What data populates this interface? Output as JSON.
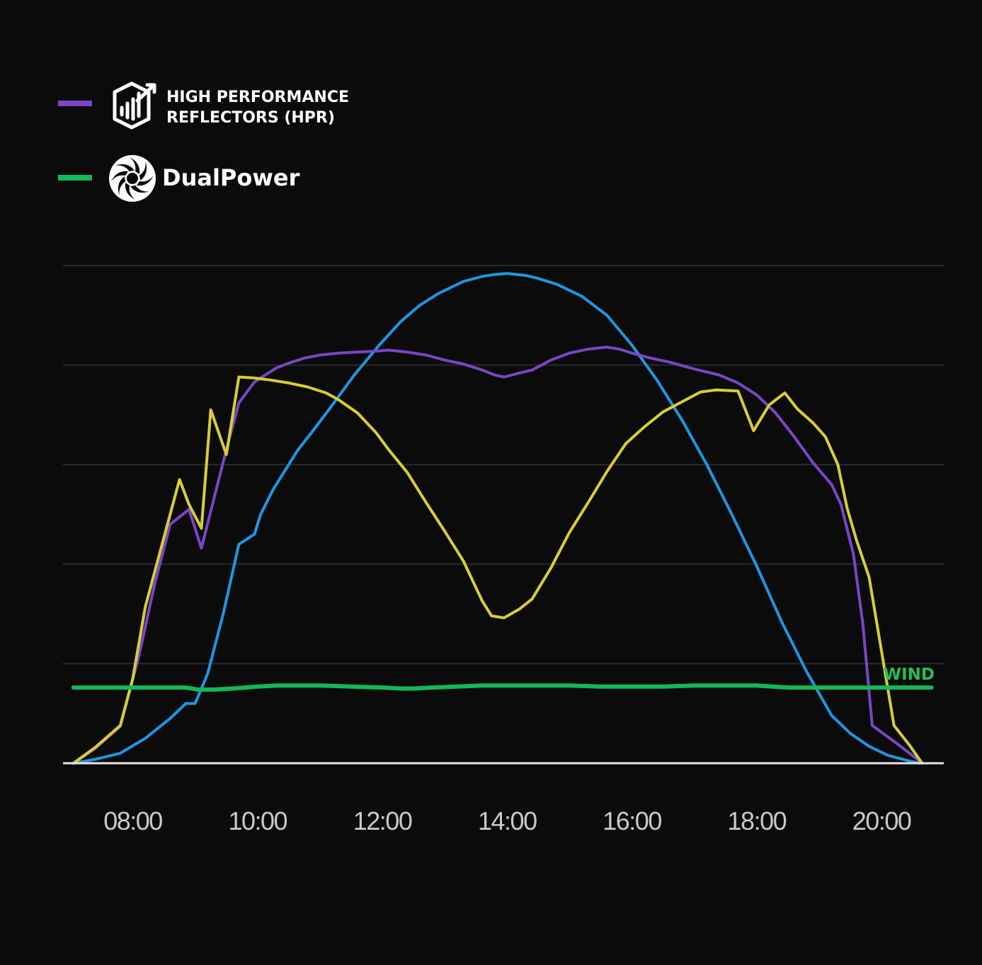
{
  "legend": {
    "hpr": {
      "line1": "HIGH PERFORMANCE",
      "line2": "REFLECTORS (HPR)",
      "color": "#7a45c7",
      "icon": "bar-chart-growth-icon"
    },
    "dualpower": {
      "label": "DualPower",
      "color": "#12b85a",
      "icon": "aperture-turbine-icon"
    }
  },
  "wind_label": "WIND",
  "chart_data": {
    "type": "line",
    "xlabel": "",
    "ylabel": "",
    "xlim": [
      6.95,
      20.85
    ],
    "ylim": [
      0,
      5
    ],
    "x_ticks": [
      8,
      10,
      12,
      14,
      16,
      18,
      20
    ],
    "x_tick_labels": [
      "08:00",
      "10:00",
      "12:00",
      "14:00",
      "16:00",
      "18:00",
      "20:00"
    ],
    "grid": "horizontal",
    "legend_position": "top-left",
    "series": [
      {
        "color": "#1e96e3",
        "x": [
          7.05,
          7.4,
          7.8,
          8.2,
          8.6,
          8.85,
          9.0,
          9.2,
          9.45,
          9.7,
          9.95,
          10.05,
          10.25,
          10.4,
          10.65,
          10.9,
          11.2,
          11.55,
          11.95,
          12.3,
          12.6,
          12.9,
          13.3,
          13.6,
          13.8,
          14.0,
          14.3,
          14.5,
          14.8,
          15.2,
          15.6,
          16.0,
          16.4,
          16.8,
          17.2,
          17.6,
          18.0,
          18.4,
          18.8,
          19.2,
          19.5,
          19.8,
          20.1,
          20.4,
          20.6
        ],
        "y": [
          0.0,
          0.04,
          0.1,
          0.25,
          0.45,
          0.6,
          0.6,
          0.9,
          1.5,
          2.2,
          2.3,
          2.5,
          2.75,
          2.9,
          3.15,
          3.35,
          3.6,
          3.9,
          4.2,
          4.44,
          4.6,
          4.72,
          4.84,
          4.89,
          4.91,
          4.92,
          4.9,
          4.87,
          4.81,
          4.69,
          4.5,
          4.2,
          3.85,
          3.45,
          3.0,
          2.5,
          1.98,
          1.42,
          0.92,
          0.48,
          0.3,
          0.17,
          0.08,
          0.03,
          0.0
        ]
      },
      {
        "name": "HIGH PERFORMANCE REFLECTORS (HPR)",
        "color": "#7a45c7",
        "x": [
          7.05,
          7.4,
          7.8,
          8.1,
          8.35,
          8.6,
          8.9,
          9.1,
          9.5,
          9.7,
          9.95,
          10.3,
          10.5,
          10.75,
          11.0,
          11.3,
          11.6,
          11.9,
          12.1,
          12.4,
          12.7,
          13.0,
          13.3,
          13.6,
          13.8,
          13.95,
          14.2,
          14.4,
          14.7,
          15.0,
          15.3,
          15.6,
          15.8,
          16.0,
          16.3,
          16.6,
          17.0,
          17.4,
          17.7,
          18.0,
          18.3,
          18.6,
          18.9,
          19.2,
          19.35,
          19.55,
          19.7,
          19.85,
          20.2,
          20.45,
          20.65
        ],
        "y": [
          0.0,
          0.15,
          0.37,
          1.08,
          1.8,
          2.4,
          2.55,
          2.16,
          3.15,
          3.62,
          3.83,
          3.97,
          4.02,
          4.07,
          4.1,
          4.12,
          4.13,
          4.14,
          4.15,
          4.13,
          4.1,
          4.05,
          4.01,
          3.95,
          3.9,
          3.88,
          3.92,
          3.95,
          4.05,
          4.12,
          4.16,
          4.18,
          4.16,
          4.12,
          4.07,
          4.03,
          3.96,
          3.9,
          3.82,
          3.7,
          3.52,
          3.28,
          3.02,
          2.8,
          2.6,
          2.1,
          1.4,
          0.38,
          0.22,
          0.1,
          0.0
        ]
      },
      {
        "color": "#d6cf33",
        "x": [
          7.05,
          7.4,
          7.8,
          8.0,
          8.2,
          8.5,
          8.75,
          8.9,
          9.1,
          9.25,
          9.5,
          9.7,
          9.95,
          10.2,
          10.5,
          10.8,
          11.1,
          11.3,
          11.6,
          11.9,
          12.1,
          12.4,
          12.7,
          13.0,
          13.3,
          13.6,
          13.75,
          13.95,
          14.2,
          14.4,
          14.7,
          15.0,
          15.3,
          15.6,
          15.9,
          16.2,
          16.5,
          16.8,
          17.1,
          17.35,
          17.7,
          17.95,
          18.2,
          18.45,
          18.65,
          18.9,
          19.1,
          19.3,
          19.45,
          19.6,
          19.8,
          20.2,
          20.45,
          20.65
        ],
        "y": [
          0.0,
          0.16,
          0.38,
          0.85,
          1.57,
          2.27,
          2.85,
          2.6,
          2.36,
          3.55,
          3.1,
          3.88,
          3.87,
          3.85,
          3.82,
          3.78,
          3.72,
          3.65,
          3.52,
          3.32,
          3.15,
          2.92,
          2.62,
          2.33,
          2.03,
          1.63,
          1.48,
          1.46,
          1.55,
          1.65,
          1.96,
          2.32,
          2.62,
          2.93,
          3.21,
          3.38,
          3.53,
          3.63,
          3.73,
          3.75,
          3.74,
          3.34,
          3.6,
          3.72,
          3.56,
          3.42,
          3.28,
          3.0,
          2.56,
          2.24,
          1.87,
          0.38,
          0.18,
          0.0
        ]
      },
      {
        "name": "DualPower",
        "color": "#12b85a",
        "x": [
          7.05,
          7.5,
          8.0,
          8.5,
          8.85,
          9.05,
          9.3,
          9.6,
          10.0,
          10.3,
          10.6,
          11.0,
          11.5,
          12.0,
          12.3,
          12.5,
          12.8,
          13.2,
          13.6,
          14.0,
          14.5,
          15.0,
          15.5,
          16.0,
          16.5,
          17.0,
          17.5,
          18.0,
          18.5,
          19.0,
          19.5,
          20.0,
          20.5,
          20.8
        ],
        "y": [
          0.76,
          0.76,
          0.76,
          0.76,
          0.76,
          0.74,
          0.74,
          0.75,
          0.77,
          0.78,
          0.78,
          0.78,
          0.77,
          0.76,
          0.75,
          0.75,
          0.76,
          0.77,
          0.78,
          0.78,
          0.78,
          0.78,
          0.77,
          0.77,
          0.77,
          0.78,
          0.78,
          0.78,
          0.76,
          0.76,
          0.76,
          0.76,
          0.76,
          0.76
        ]
      }
    ]
  }
}
